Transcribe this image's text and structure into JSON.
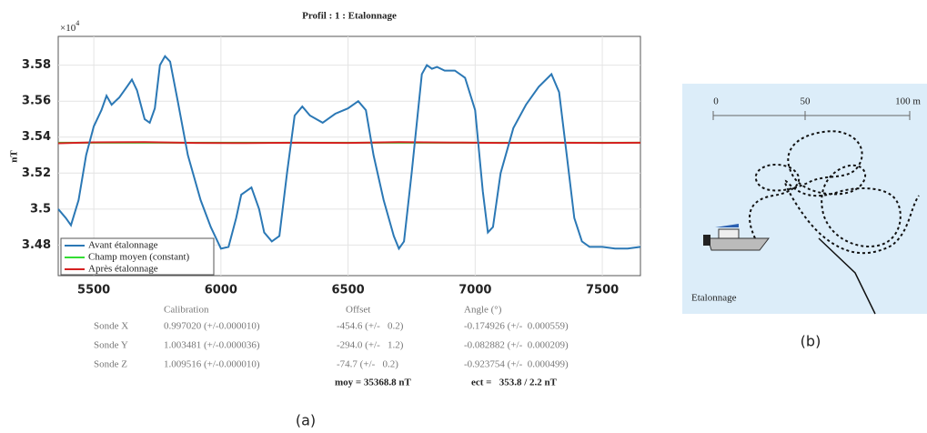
{
  "chart_data": {
    "type": "line",
    "title": "Profil : 1 : Etalonnage",
    "y_label": "nT",
    "y_multiplier": {
      "base": "×10",
      "exponent": "4"
    },
    "xlim": [
      5360,
      7650
    ],
    "xticks": [
      5500,
      6000,
      6500,
      7000,
      7500
    ],
    "ylim": [
      3.463,
      3.596
    ],
    "yticks": [
      3.48,
      3.5,
      3.52,
      3.54,
      3.56,
      3.58
    ],
    "grid": true,
    "legend": "lower left",
    "series": [
      {
        "name": "Avant étalonnage",
        "color": "#2b78b5",
        "x": [
          5360,
          5390,
          5410,
          5440,
          5470,
          5500,
          5530,
          5550,
          5570,
          5600,
          5630,
          5650,
          5670,
          5700,
          5720,
          5740,
          5760,
          5780,
          5800,
          5830,
          5870,
          5920,
          5960,
          6000,
          6030,
          6060,
          6080,
          6100,
          6120,
          6150,
          6170,
          6200,
          6230,
          6260,
          6290,
          6320,
          6350,
          6400,
          6450,
          6500,
          6540,
          6570,
          6600,
          6640,
          6680,
          6700,
          6720,
          6750,
          6790,
          6810,
          6830,
          6850,
          6880,
          6920,
          6960,
          7000,
          7030,
          7050,
          7070,
          7100,
          7150,
          7200,
          7250,
          7300,
          7330,
          7360,
          7390,
          7420,
          7450,
          7500,
          7550,
          7600,
          7650
        ],
        "values": [
          3.5,
          3.495,
          3.491,
          3.505,
          3.53,
          3.546,
          3.555,
          3.563,
          3.558,
          3.562,
          3.568,
          3.572,
          3.566,
          3.55,
          3.548,
          3.556,
          3.58,
          3.585,
          3.582,
          3.56,
          3.53,
          3.505,
          3.49,
          3.478,
          3.479,
          3.495,
          3.508,
          3.51,
          3.512,
          3.5,
          3.487,
          3.482,
          3.485,
          3.52,
          3.552,
          3.557,
          3.552,
          3.548,
          3.553,
          3.556,
          3.56,
          3.555,
          3.53,
          3.505,
          3.485,
          3.478,
          3.482,
          3.52,
          3.575,
          3.58,
          3.578,
          3.579,
          3.577,
          3.577,
          3.573,
          3.555,
          3.51,
          3.487,
          3.49,
          3.52,
          3.545,
          3.558,
          3.568,
          3.575,
          3.565,
          3.53,
          3.495,
          3.482,
          3.479,
          3.479,
          3.478,
          3.478,
          3.479
        ]
      },
      {
        "name": "Champ moyen (constant)",
        "color": "#33dd33",
        "x": [
          5360,
          7650
        ],
        "values": [
          3.5369,
          3.5369
        ]
      },
      {
        "name": "Après étalonnage",
        "color": "#d62020",
        "x": [
          5360,
          5500,
          5700,
          5900,
          6100,
          6300,
          6500,
          6700,
          6900,
          7100,
          7300,
          7500,
          7650
        ],
        "values": [
          3.5366,
          3.5371,
          3.5372,
          3.5368,
          3.5367,
          3.5369,
          3.5368,
          3.5372,
          3.537,
          3.5368,
          3.5369,
          3.5368,
          3.5369
        ]
      }
    ]
  },
  "table": {
    "headers": [
      "Calibration",
      "Offset",
      "Angle (°)"
    ],
    "rows": [
      [
        "Sonde X",
        "0.997020 (+/-0.000010)",
        "-454.6 (+/-   0.2)",
        "-0.174926 (+/-  0.000559)"
      ],
      [
        "Sonde Y",
        "1.003481 (+/-0.000036)",
        "-294.0 (+/-   1.2)",
        "-0.082882 (+/-  0.000209)"
      ],
      [
        "Sonde Z",
        "1.009516 (+/-0.000010)",
        "-74.7 (+/-   0.2)",
        "-0.923754 (+/-  0.000499)"
      ]
    ],
    "summary": [
      "moy = 35368.8 nT",
      "ect =   353.8 / 2.2 nT"
    ]
  },
  "captions": [
    "(a)",
    "(b)"
  ],
  "diagram": {
    "scale_labels": [
      "0",
      "50",
      "100 m"
    ],
    "label": "Etalonnage"
  }
}
